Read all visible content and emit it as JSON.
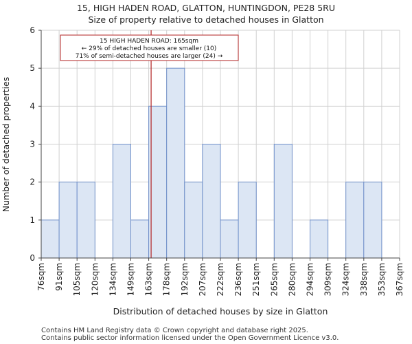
{
  "chart_data": {
    "type": "bar",
    "title": "15, HIGH HADEN ROAD, GLATTON, HUNTINGDON, PE28 5RU",
    "subtitle": "Size of property relative to detached houses in Glatton",
    "xlabel": "Distribution of detached houses by size in Glatton",
    "ylabel": "Number of detached properties",
    "bin_edges": [
      "76sqm",
      "91sqm",
      "105sqm",
      "120sqm",
      "134sqm",
      "149sqm",
      "163sqm",
      "178sqm",
      "192sqm",
      "207sqm",
      "222sqm",
      "236sqm",
      "251sqm",
      "265sqm",
      "280sqm",
      "294sqm",
      "309sqm",
      "324sqm",
      "338sqm",
      "353sqm",
      "367sqm"
    ],
    "values": [
      1,
      2,
      2,
      0,
      3,
      1,
      4,
      5,
      2,
      3,
      1,
      2,
      0,
      3,
      0,
      1,
      0,
      2,
      2,
      0
    ],
    "ylim": [
      0,
      6
    ],
    "yticks": [
      "0",
      "1",
      "2",
      "3",
      "4",
      "5",
      "6"
    ],
    "grid": true,
    "bar_color": "#dce6f4",
    "bar_edge_color": "#6f8fc9",
    "marker": {
      "value_sqm": 165,
      "color": "#b22222",
      "annotation": [
        "15 HIGH HADEN ROAD: 165sqm",
        "← 29% of detached houses are smaller (10)",
        "71% of semi-detached houses are larger (24) →"
      ]
    }
  },
  "footer": [
    "Contains HM Land Registry data © Crown copyright and database right 2025.",
    "Contains public sector information licensed under the Open Government Licence v3.0."
  ]
}
